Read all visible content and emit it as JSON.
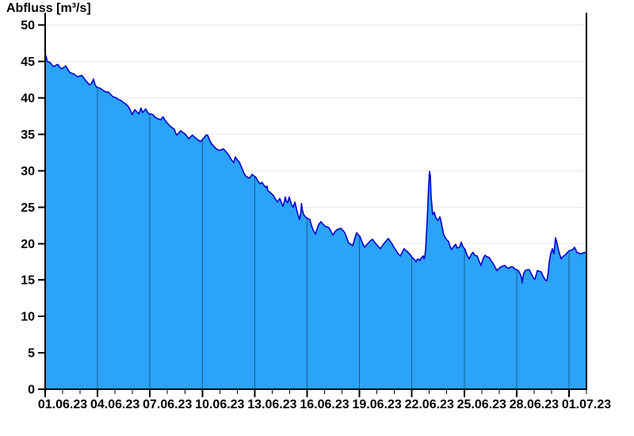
{
  "title": "Abfluss [m³/s]",
  "chart_data": {
    "type": "area",
    "title": "Abfluss [m³/s]",
    "xlabel": "",
    "ylabel": "Abfluss [m³/s]",
    "ylim": [
      0,
      50
    ],
    "y_ticks": [
      0,
      5,
      10,
      15,
      20,
      25,
      30,
      35,
      40,
      45,
      50
    ],
    "x_tick_labels": [
      "01.06.23",
      "04.06.23",
      "07.06.23",
      "10.06.23",
      "13.06.23",
      "16.06.23",
      "19.06.23",
      "22.06.23",
      "25.06.23",
      "28.06.23",
      "01.07.23"
    ],
    "x_domain_days": 31,
    "x_major_interval_days": 3,
    "x_minor_interval_days": 1,
    "x_label_offset_days": 1,
    "grid": {
      "horizontal": true,
      "vertical_inside_fill": true
    },
    "legend": "none",
    "colors": {
      "fill": "#2ba3f8",
      "line": "#0000cc",
      "h_grid": "#e9e9e9",
      "v_grid": "rgba(0,0,0,0.42)",
      "axis": "#000000",
      "text": "#000000",
      "background": "#ffffff"
    },
    "points": [
      [
        0,
        45.4
      ],
      [
        0.05,
        45.8
      ],
      [
        0.12,
        45.0
      ],
      [
        0.27,
        44.9
      ],
      [
        0.4,
        44.5
      ],
      [
        0.5,
        44.3
      ],
      [
        0.62,
        44.5
      ],
      [
        0.73,
        44.6
      ],
      [
        0.84,
        44.2
      ],
      [
        0.95,
        44.0
      ],
      [
        1.06,
        44.2
      ],
      [
        1.18,
        44.4
      ],
      [
        1.3,
        43.9
      ],
      [
        1.41,
        43.5
      ],
      [
        1.52,
        43.4
      ],
      [
        1.63,
        43.3
      ],
      [
        1.75,
        43.1
      ],
      [
        1.86,
        42.9
      ],
      [
        1.97,
        43.0
      ],
      [
        2.09,
        43.1
      ],
      [
        2.2,
        42.8
      ],
      [
        2.31,
        42.4
      ],
      [
        2.43,
        42.1
      ],
      [
        2.54,
        41.8
      ],
      [
        2.65,
        42.0
      ],
      [
        2.77,
        42.6
      ],
      [
        2.86,
        41.8
      ],
      [
        2.95,
        41.5
      ],
      [
        3.07,
        41.4
      ],
      [
        3.18,
        41.3
      ],
      [
        3.29,
        41.1
      ],
      [
        3.4,
        40.9
      ],
      [
        3.52,
        40.8
      ],
      [
        3.63,
        40.8
      ],
      [
        3.74,
        40.5
      ],
      [
        3.86,
        40.2
      ],
      [
        3.97,
        40.1
      ],
      [
        4.08,
        40.0
      ],
      [
        4.2,
        39.8
      ],
      [
        4.31,
        39.7
      ],
      [
        4.42,
        39.5
      ],
      [
        4.54,
        39.3
      ],
      [
        4.65,
        39.1
      ],
      [
        4.77,
        38.8
      ],
      [
        4.88,
        38.3
      ],
      [
        4.99,
        37.7
      ],
      [
        5.13,
        38.4
      ],
      [
        5.25,
        38.1
      ],
      [
        5.36,
        37.8
      ],
      [
        5.49,
        38.6
      ],
      [
        5.58,
        38.0
      ],
      [
        5.7,
        38.3
      ],
      [
        5.76,
        38.5
      ],
      [
        5.85,
        38.1
      ],
      [
        5.95,
        37.8
      ],
      [
        6.06,
        37.8
      ],
      [
        6.17,
        37.7
      ],
      [
        6.28,
        37.4
      ],
      [
        6.4,
        37.2
      ],
      [
        6.51,
        37.1
      ],
      [
        6.63,
        37.0
      ],
      [
        6.7,
        37.3
      ],
      [
        6.76,
        37.4
      ],
      [
        6.85,
        37.0
      ],
      [
        6.94,
        36.7
      ],
      [
        7.05,
        36.4
      ],
      [
        7.17,
        36.1
      ],
      [
        7.28,
        35.9
      ],
      [
        7.4,
        35.7
      ],
      [
        7.47,
        35.2
      ],
      [
        7.53,
        34.9
      ],
      [
        7.65,
        35.2
      ],
      [
        7.76,
        35.5
      ],
      [
        7.87,
        35.3
      ],
      [
        7.99,
        35.1
      ],
      [
        8.1,
        34.8
      ],
      [
        8.22,
        34.4
      ],
      [
        8.33,
        34.7
      ],
      [
        8.44,
        34.9
      ],
      [
        8.56,
        34.6
      ],
      [
        8.67,
        34.4
      ],
      [
        8.78,
        34.2
      ],
      [
        8.9,
        34.0
      ],
      [
        9.01,
        34.3
      ],
      [
        9.12,
        34.6
      ],
      [
        9.21,
        34.9
      ],
      [
        9.3,
        34.9
      ],
      [
        9.42,
        34.2
      ],
      [
        9.53,
        33.7
      ],
      [
        9.64,
        33.4
      ],
      [
        9.76,
        33.1
      ],
      [
        9.87,
        32.9
      ],
      [
        9.99,
        32.8
      ],
      [
        10.1,
        32.9
      ],
      [
        10.21,
        33.0
      ],
      [
        10.33,
        32.7
      ],
      [
        10.44,
        32.4
      ],
      [
        10.55,
        32.0
      ],
      [
        10.67,
        31.5
      ],
      [
        10.8,
        31.1
      ],
      [
        10.89,
        31.9
      ],
      [
        11.0,
        31.5
      ],
      [
        11.12,
        31.2
      ],
      [
        11.26,
        30.4
      ],
      [
        11.38,
        29.7
      ],
      [
        11.48,
        29.3
      ],
      [
        11.6,
        29.1
      ],
      [
        11.71,
        29.0
      ],
      [
        11.85,
        29.5
      ],
      [
        11.96,
        29.3
      ],
      [
        12.07,
        29.1
      ],
      [
        12.18,
        28.6
      ],
      [
        12.3,
        28.2
      ],
      [
        12.42,
        28.4
      ],
      [
        12.53,
        28.0
      ],
      [
        12.64,
        27.7
      ],
      [
        12.7,
        27.9
      ],
      [
        12.75,
        27.3
      ],
      [
        12.9,
        27.0
      ],
      [
        13.07,
        26.6
      ],
      [
        13.2,
        26.1
      ],
      [
        13.3,
        25.7
      ],
      [
        13.44,
        26.2
      ],
      [
        13.55,
        25.5
      ],
      [
        13.62,
        25.1
      ],
      [
        13.7,
        25.8
      ],
      [
        13.75,
        26.4
      ],
      [
        13.82,
        25.8
      ],
      [
        13.89,
        25.6
      ],
      [
        13.98,
        26.4
      ],
      [
        14.05,
        25.8
      ],
      [
        14.12,
        25.3
      ],
      [
        14.21,
        25.0
      ],
      [
        14.3,
        25.7
      ],
      [
        14.37,
        25.0
      ],
      [
        14.43,
        24.4
      ],
      [
        14.5,
        23.8
      ],
      [
        14.57,
        23.3
      ],
      [
        14.64,
        24.3
      ],
      [
        14.68,
        25.5
      ],
      [
        14.73,
        24.6
      ],
      [
        14.8,
        24.0
      ],
      [
        14.89,
        23.7
      ],
      [
        15.0,
        23.5
      ],
      [
        15.16,
        23.3
      ],
      [
        15.25,
        22.5
      ],
      [
        15.34,
        21.9
      ],
      [
        15.48,
        21.3
      ],
      [
        15.57,
        22.0
      ],
      [
        15.66,
        22.6
      ],
      [
        15.79,
        23.0
      ],
      [
        15.9,
        22.7
      ],
      [
        16.02,
        22.4
      ],
      [
        16.13,
        22.3
      ],
      [
        16.25,
        22.2
      ],
      [
        16.36,
        21.7
      ],
      [
        16.48,
        21.2
      ],
      [
        16.59,
        21.6
      ],
      [
        16.7,
        21.9
      ],
      [
        16.82,
        22.0
      ],
      [
        16.93,
        22.1
      ],
      [
        17.05,
        21.8
      ],
      [
        17.16,
        21.5
      ],
      [
        17.27,
        20.8
      ],
      [
        17.38,
        20.1
      ],
      [
        17.5,
        19.9
      ],
      [
        17.61,
        19.7
      ],
      [
        17.72,
        20.6
      ],
      [
        17.84,
        21.5
      ],
      [
        17.93,
        21.2
      ],
      [
        18.02,
        21.0
      ],
      [
        18.15,
        20.2
      ],
      [
        18.29,
        19.5
      ],
      [
        18.4,
        19.8
      ],
      [
        18.52,
        20.1
      ],
      [
        18.63,
        20.4
      ],
      [
        18.75,
        20.6
      ],
      [
        18.86,
        20.2
      ],
      [
        18.97,
        19.9
      ],
      [
        19.08,
        19.6
      ],
      [
        19.2,
        19.3
      ],
      [
        19.31,
        19.7
      ],
      [
        19.43,
        20.1
      ],
      [
        19.54,
        20.4
      ],
      [
        19.65,
        20.7
      ],
      [
        19.77,
        20.3
      ],
      [
        19.88,
        19.9
      ],
      [
        20.0,
        19.4
      ],
      [
        20.11,
        19.0
      ],
      [
        20.22,
        18.6
      ],
      [
        20.34,
        18.3
      ],
      [
        20.45,
        18.8
      ],
      [
        20.56,
        19.3
      ],
      [
        20.63,
        19.1
      ],
      [
        20.7,
        19.0
      ],
      [
        20.82,
        18.7
      ],
      [
        20.93,
        18.4
      ],
      [
        21.02,
        18.1
      ],
      [
        21.11,
        17.9
      ],
      [
        21.18,
        17.7
      ],
      [
        21.24,
        17.5
      ],
      [
        21.33,
        17.9
      ],
      [
        21.47,
        17.7
      ],
      [
        21.56,
        18.1
      ],
      [
        21.65,
        18.3
      ],
      [
        21.7,
        17.9
      ],
      [
        21.74,
        18.2
      ],
      [
        21.79,
        19.2
      ],
      [
        21.83,
        21.0
      ],
      [
        21.88,
        23.2
      ],
      [
        21.92,
        25.5
      ],
      [
        21.96,
        27.8
      ],
      [
        22.01,
        29.9
      ],
      [
        22.06,
        29.3
      ],
      [
        22.1,
        26.5
      ],
      [
        22.15,
        25.2
      ],
      [
        22.19,
        24.0
      ],
      [
        22.24,
        24.1
      ],
      [
        22.28,
        24.3
      ],
      [
        22.37,
        23.6
      ],
      [
        22.47,
        23.2
      ],
      [
        22.56,
        23.4
      ],
      [
        22.6,
        23.7
      ],
      [
        22.65,
        23.3
      ],
      [
        22.74,
        22.2
      ],
      [
        22.83,
        21.2
      ],
      [
        22.97,
        20.6
      ],
      [
        23.1,
        20.3
      ],
      [
        23.19,
        19.6
      ],
      [
        23.28,
        19.2
      ],
      [
        23.4,
        19.6
      ],
      [
        23.51,
        19.9
      ],
      [
        23.6,
        19.4
      ],
      [
        23.74,
        19.5
      ],
      [
        23.83,
        20.2
      ],
      [
        23.92,
        19.6
      ],
      [
        24.05,
        19.2
      ],
      [
        24.15,
        18.5
      ],
      [
        24.28,
        17.9
      ],
      [
        24.4,
        18.5
      ],
      [
        24.51,
        18.8
      ],
      [
        24.6,
        18.4
      ],
      [
        24.74,
        18.3
      ],
      [
        24.85,
        17.6
      ],
      [
        24.96,
        17.0
      ],
      [
        25.08,
        17.9
      ],
      [
        25.19,
        18.4
      ],
      [
        25.3,
        18.2
      ],
      [
        25.42,
        18.1
      ],
      [
        25.53,
        17.7
      ],
      [
        25.64,
        17.3
      ],
      [
        25.76,
        16.8
      ],
      [
        25.87,
        16.3
      ],
      [
        26.0,
        16.6
      ],
      [
        26.1,
        16.8
      ],
      [
        26.21,
        16.9
      ],
      [
        26.33,
        17.0
      ],
      [
        26.44,
        16.7
      ],
      [
        26.55,
        16.6
      ],
      [
        26.67,
        16.8
      ],
      [
        26.78,
        16.8
      ],
      [
        26.9,
        16.5
      ],
      [
        27.01,
        16.4
      ],
      [
        27.1,
        16.3
      ],
      [
        27.23,
        15.7
      ],
      [
        27.29,
        15.2
      ],
      [
        27.32,
        14.6
      ],
      [
        27.37,
        15.5
      ],
      [
        27.41,
        15.9
      ],
      [
        27.5,
        16.3
      ],
      [
        27.62,
        16.4
      ],
      [
        27.73,
        16.4
      ],
      [
        27.85,
        15.8
      ],
      [
        27.96,
        15.3
      ],
      [
        28.05,
        15.1
      ],
      [
        28.12,
        15.7
      ],
      [
        28.19,
        16.3
      ],
      [
        28.3,
        16.2
      ],
      [
        28.41,
        16.1
      ],
      [
        28.52,
        15.5
      ],
      [
        28.64,
        15.0
      ],
      [
        28.73,
        14.9
      ],
      [
        28.8,
        15.8
      ],
      [
        28.87,
        17.5
      ],
      [
        28.95,
        18.6
      ],
      [
        29.05,
        19.3
      ],
      [
        29.1,
        18.8
      ],
      [
        29.14,
        18.6
      ],
      [
        29.19,
        19.8
      ],
      [
        29.23,
        20.8
      ],
      [
        29.28,
        20.4
      ],
      [
        29.32,
        20.0
      ],
      [
        29.41,
        19.0
      ],
      [
        29.5,
        18.3
      ],
      [
        29.55,
        17.9
      ],
      [
        29.64,
        18.2
      ],
      [
        29.77,
        18.4
      ],
      [
        29.88,
        18.7
      ],
      [
        30.0,
        19.0
      ],
      [
        30.12,
        19.1
      ],
      [
        30.23,
        19.2
      ],
      [
        30.32,
        19.5
      ],
      [
        30.4,
        19.1
      ],
      [
        30.45,
        18.8
      ],
      [
        30.55,
        18.7
      ],
      [
        30.68,
        18.6
      ],
      [
        30.8,
        18.7
      ],
      [
        30.91,
        18.8
      ],
      [
        31.0,
        18.7
      ]
    ]
  }
}
